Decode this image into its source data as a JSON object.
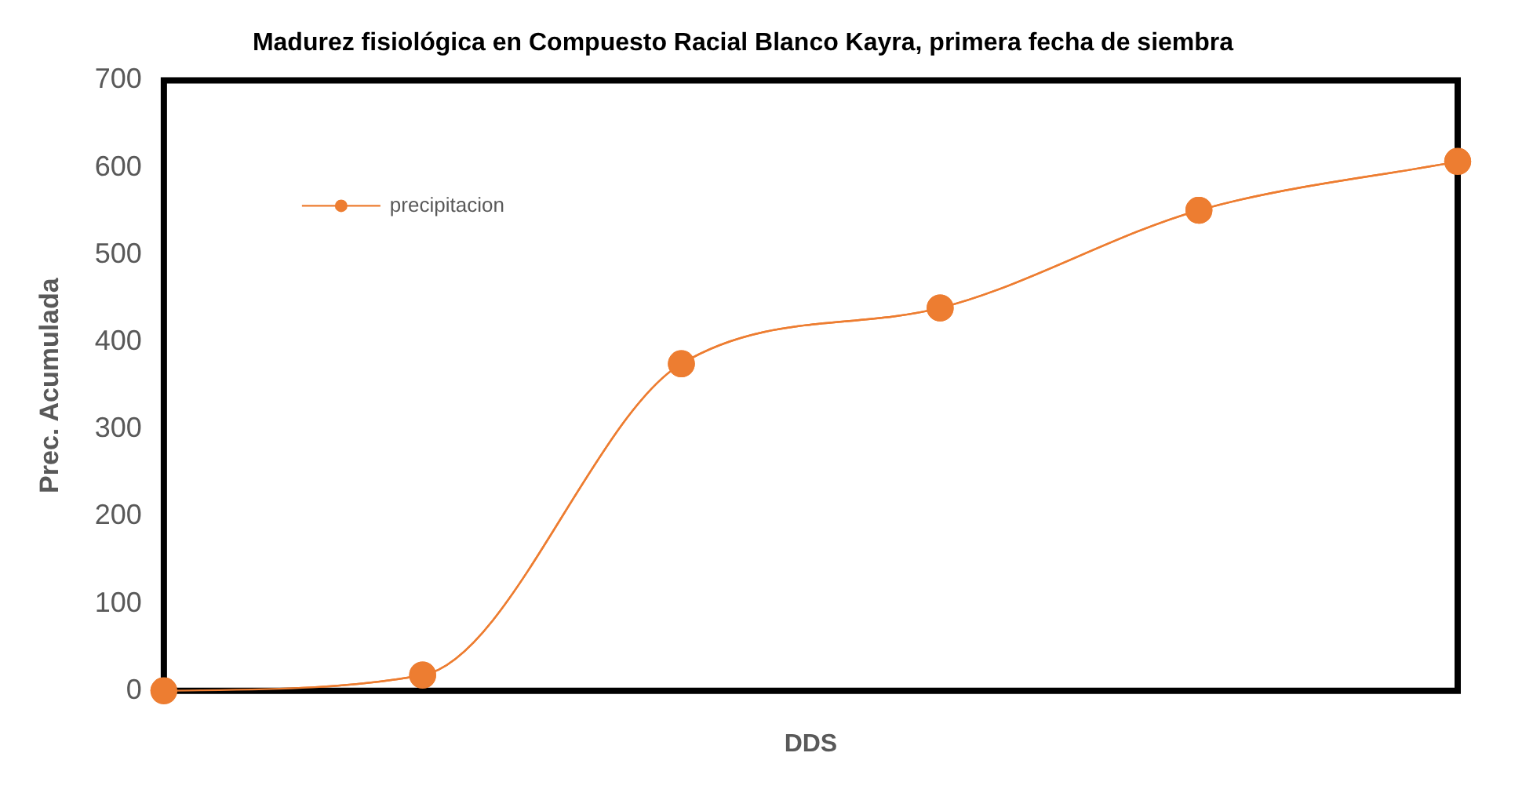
{
  "chart_data": {
    "type": "line",
    "title": "Madurez fisiológica en Compuesto Racial Blanco Kayra, primera fecha de siembra",
    "xlabel": "DDS",
    "ylabel": "Prec. Acumulada",
    "categories": [
      null,
      null,
      null,
      null,
      null,
      null
    ],
    "series": [
      {
        "name": "precipitacion",
        "color": "#ed7d31",
        "values": [
          0,
          18,
          375,
          439,
          551,
          607
        ]
      }
    ],
    "ylim": [
      0,
      700
    ],
    "yticks": [
      0,
      100,
      200,
      300,
      400,
      500,
      600,
      700
    ],
    "grid": false,
    "legend": "top left",
    "marker": "circle",
    "line_style": "solid"
  }
}
